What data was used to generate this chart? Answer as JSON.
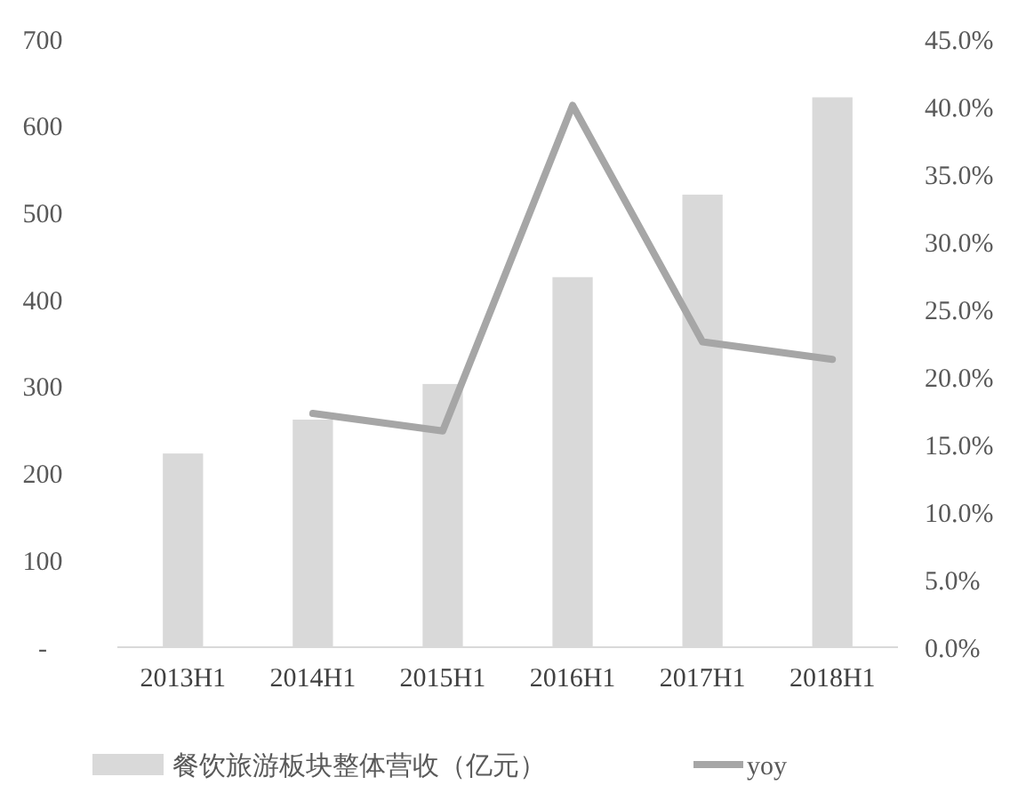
{
  "chart_data": {
    "type": "bar",
    "categories": [
      "2013H1",
      "2014H1",
      "2015H1",
      "2016H1",
      "2017H1",
      "2018H1"
    ],
    "series": [
      {
        "name": "餐饮旅游板块整体营收（亿元）",
        "color": "#d9d9d9",
        "values": [
          223,
          262,
          303,
          426,
          521,
          633
        ]
      },
      {
        "name": "yoy",
        "type": "line",
        "axis": "y2",
        "color": "#a6a6a6",
        "values": [
          null,
          17.3,
          16.0,
          40.1,
          22.6,
          21.3
        ]
      }
    ],
    "ylim": [
      0,
      700
    ],
    "yticks": [
      {
        "value": 0,
        "label": "-"
      },
      100,
      200,
      300,
      400,
      500,
      600,
      700
    ],
    "y2lim": [
      0,
      45
    ],
    "y2ticks": [
      {
        "value": 0,
        "label": "0.0%"
      },
      {
        "value": 5,
        "label": "5.0%"
      },
      {
        "value": 10,
        "label": "10.0%"
      },
      {
        "value": 15,
        "label": "15.0%"
      },
      {
        "value": 20,
        "label": "20.0%"
      },
      {
        "value": 25,
        "label": "25.0%"
      },
      {
        "value": 30,
        "label": "30.0%"
      },
      {
        "value": 35,
        "label": "35.0%"
      },
      {
        "value": 40,
        "label": "40.0%"
      },
      {
        "value": 45,
        "label": "45.0%"
      }
    ],
    "grid": false,
    "legend": "bottom",
    "marker": "none"
  }
}
